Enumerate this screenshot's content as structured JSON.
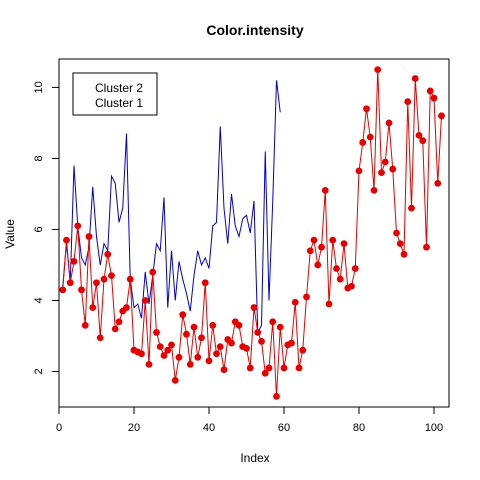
{
  "chart_data": {
    "type": "line",
    "title": "Color.intensity",
    "xlabel": "Index",
    "ylabel": "Value",
    "xlim": [
      0,
      104
    ],
    "ylim": [
      1,
      10.8
    ],
    "xticks": [
      0,
      20,
      40,
      60,
      80,
      100
    ],
    "yticks": [
      2,
      4,
      6,
      8,
      10
    ],
    "grid": false,
    "legend": {
      "position": "top-left",
      "entries": [
        "Cluster 2",
        "Cluster 1"
      ]
    },
    "colors": {
      "cluster2": "#0000CC",
      "cluster1": "#E60000"
    },
    "series": [
      {
        "name": "Cluster 2",
        "style": "line",
        "values": [
          4.4,
          5.6,
          4.5,
          7.8,
          6.1,
          5.2,
          5.0,
          5.5,
          7.2,
          5.8,
          5.0,
          5.6,
          5.4,
          7.5,
          7.3,
          6.2,
          6.6,
          8.7,
          4.6,
          3.8,
          3.9,
          3.5,
          4.8,
          3.9,
          4.7,
          5.6,
          5.4,
          6.9,
          3.8,
          5.4,
          4.0,
          5.1,
          4.6,
          4.2,
          3.7,
          4.7,
          5.4,
          5.0,
          5.2,
          4.9,
          6.1,
          6.2,
          8.9,
          6.6,
          5.6,
          7.0,
          6.1,
          5.8,
          6.3,
          6.4,
          5.9,
          6.8,
          3.1,
          3.3,
          8.2,
          4.0,
          6.8,
          10.2,
          9.3
        ]
      },
      {
        "name": "Cluster 1",
        "style": "line+points",
        "values": [
          4.3,
          5.7,
          4.5,
          5.1,
          6.1,
          4.3,
          3.3,
          5.8,
          3.8,
          4.5,
          2.95,
          4.6,
          5.3,
          4.7,
          3.2,
          3.4,
          3.7,
          3.8,
          4.6,
          2.6,
          2.55,
          2.5,
          4.0,
          2.2,
          4.8,
          3.1,
          2.7,
          2.45,
          2.6,
          2.75,
          1.75,
          2.4,
          3.6,
          3.05,
          2.2,
          3.25,
          2.4,
          2.95,
          4.5,
          2.3,
          3.3,
          2.5,
          2.7,
          2.05,
          2.9,
          2.8,
          3.4,
          3.3,
          2.7,
          2.65,
          2.1,
          3.8,
          3.1,
          2.85,
          1.95,
          2.1,
          3.4,
          1.3,
          3.25,
          2.1,
          2.75,
          2.8,
          3.95,
          2.1,
          2.6,
          4.1,
          5.4,
          5.7,
          5.0,
          5.5,
          7.1,
          3.9,
          5.7,
          4.9,
          4.6,
          5.6,
          4.35,
          4.4,
          4.9,
          7.65,
          8.45,
          9.4,
          8.6,
          7.1,
          10.5,
          7.6,
          7.9,
          9.0,
          7.7,
          5.9,
          5.6,
          5.3,
          9.6,
          6.6,
          10.25,
          8.65,
          8.5,
          5.5,
          9.9,
          9.7,
          7.3,
          9.2
        ]
      }
    ]
  }
}
